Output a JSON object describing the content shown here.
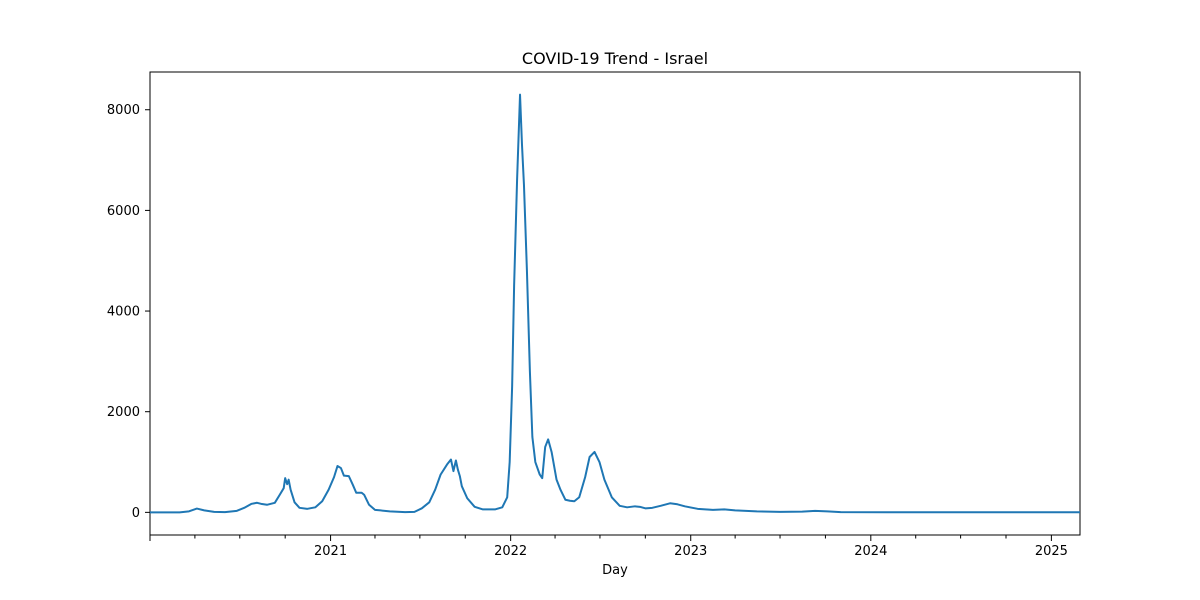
{
  "chart_data": {
    "type": "line",
    "title": "COVID-19 Trend - Israel",
    "xlabel": "Day",
    "ylabel": "",
    "x_type": "date",
    "xlim": [
      "2020-01-01",
      "2025-02-28"
    ],
    "ylim": [
      -450,
      8750
    ],
    "yticks": [
      0,
      2000,
      4000,
      6000,
      8000
    ],
    "ytick_labels": [
      "0",
      "2000",
      "4000",
      "6000",
      "8000"
    ],
    "xticks_major": [
      "2021-01-01",
      "2022-01-01",
      "2023-01-01",
      "2024-01-01",
      "2025-01-01"
    ],
    "xtick_labels": [
      "2021",
      "2022",
      "2023",
      "2024",
      "2025"
    ],
    "grid": false,
    "legend": "none",
    "series": [
      {
        "color": "#1f77b4",
        "points": [
          [
            "2020-01-01",
            0
          ],
          [
            "2020-03-01",
            0
          ],
          [
            "2020-03-20",
            20
          ],
          [
            "2020-04-05",
            75
          ],
          [
            "2020-04-20",
            40
          ],
          [
            "2020-05-10",
            10
          ],
          [
            "2020-06-01",
            5
          ],
          [
            "2020-06-25",
            30
          ],
          [
            "2020-07-10",
            90
          ],
          [
            "2020-07-25",
            170
          ],
          [
            "2020-08-05",
            190
          ],
          [
            "2020-08-15",
            165
          ],
          [
            "2020-08-25",
            150
          ],
          [
            "2020-09-10",
            190
          ],
          [
            "2020-09-20",
            350
          ],
          [
            "2020-09-28",
            480
          ],
          [
            "2020-10-01",
            680
          ],
          [
            "2020-10-05",
            560
          ],
          [
            "2020-10-08",
            650
          ],
          [
            "2020-10-12",
            450
          ],
          [
            "2020-10-20",
            200
          ],
          [
            "2020-10-30",
            90
          ],
          [
            "2020-11-15",
            70
          ],
          [
            "2020-12-01",
            100
          ],
          [
            "2020-12-15",
            220
          ],
          [
            "2020-12-28",
            450
          ],
          [
            "2021-01-08",
            700
          ],
          [
            "2021-01-15",
            920
          ],
          [
            "2021-01-22",
            880
          ],
          [
            "2021-01-28",
            730
          ],
          [
            "2021-02-07",
            720
          ],
          [
            "2021-02-15",
            550
          ],
          [
            "2021-02-22",
            390
          ],
          [
            "2021-03-05",
            390
          ],
          [
            "2021-03-10",
            350
          ],
          [
            "2021-03-20",
            150
          ],
          [
            "2021-04-01",
            50
          ],
          [
            "2021-05-01",
            20
          ],
          [
            "2021-06-01",
            5
          ],
          [
            "2021-06-20",
            10
          ],
          [
            "2021-07-05",
            80
          ],
          [
            "2021-07-20",
            200
          ],
          [
            "2021-08-01",
            450
          ],
          [
            "2021-08-12",
            750
          ],
          [
            "2021-08-25",
            950
          ],
          [
            "2021-09-02",
            1050
          ],
          [
            "2021-09-07",
            820
          ],
          [
            "2021-09-12",
            1030
          ],
          [
            "2021-09-16",
            850
          ],
          [
            "2021-09-20",
            720
          ],
          [
            "2021-09-24",
            520
          ],
          [
            "2021-10-05",
            280
          ],
          [
            "2021-10-20",
            110
          ],
          [
            "2021-11-05",
            60
          ],
          [
            "2021-12-01",
            60
          ],
          [
            "2021-12-15",
            100
          ],
          [
            "2021-12-25",
            300
          ],
          [
            "2021-12-30",
            1000
          ],
          [
            "2022-01-04",
            2500
          ],
          [
            "2022-01-08",
            4500
          ],
          [
            "2022-01-14",
            6600
          ],
          [
            "2022-01-20",
            8300
          ],
          [
            "2022-01-24",
            7300
          ],
          [
            "2022-01-28",
            6500
          ],
          [
            "2022-02-03",
            4800
          ],
          [
            "2022-02-09",
            2800
          ],
          [
            "2022-02-14",
            1500
          ],
          [
            "2022-02-20",
            1000
          ],
          [
            "2022-03-01",
            750
          ],
          [
            "2022-03-06",
            680
          ],
          [
            "2022-03-12",
            1300
          ],
          [
            "2022-03-18",
            1450
          ],
          [
            "2022-03-25",
            1200
          ],
          [
            "2022-04-04",
            650
          ],
          [
            "2022-04-12",
            450
          ],
          [
            "2022-04-22",
            250
          ],
          [
            "2022-05-01",
            230
          ],
          [
            "2022-05-10",
            220
          ],
          [
            "2022-05-20",
            300
          ],
          [
            "2022-06-01",
            700
          ],
          [
            "2022-06-10",
            1100
          ],
          [
            "2022-06-20",
            1200
          ],
          [
            "2022-06-30",
            1000
          ],
          [
            "2022-07-10",
            650
          ],
          [
            "2022-07-25",
            300
          ],
          [
            "2022-08-10",
            130
          ],
          [
            "2022-08-25",
            100
          ],
          [
            "2022-09-10",
            120
          ],
          [
            "2022-09-20",
            110
          ],
          [
            "2022-10-01",
            80
          ],
          [
            "2022-10-15",
            90
          ],
          [
            "2022-11-01",
            130
          ],
          [
            "2022-11-20",
            180
          ],
          [
            "2022-12-05",
            160
          ],
          [
            "2022-12-20",
            120
          ],
          [
            "2023-01-15",
            70
          ],
          [
            "2023-02-15",
            50
          ],
          [
            "2023-03-10",
            60
          ],
          [
            "2023-04-01",
            40
          ],
          [
            "2023-05-15",
            20
          ],
          [
            "2023-07-01",
            10
          ],
          [
            "2023-08-15",
            15
          ],
          [
            "2023-09-10",
            30
          ],
          [
            "2023-10-05",
            20
          ],
          [
            "2023-11-01",
            5
          ],
          [
            "2024-02-01",
            2
          ],
          [
            "2025-02-28",
            2
          ]
        ]
      }
    ]
  }
}
